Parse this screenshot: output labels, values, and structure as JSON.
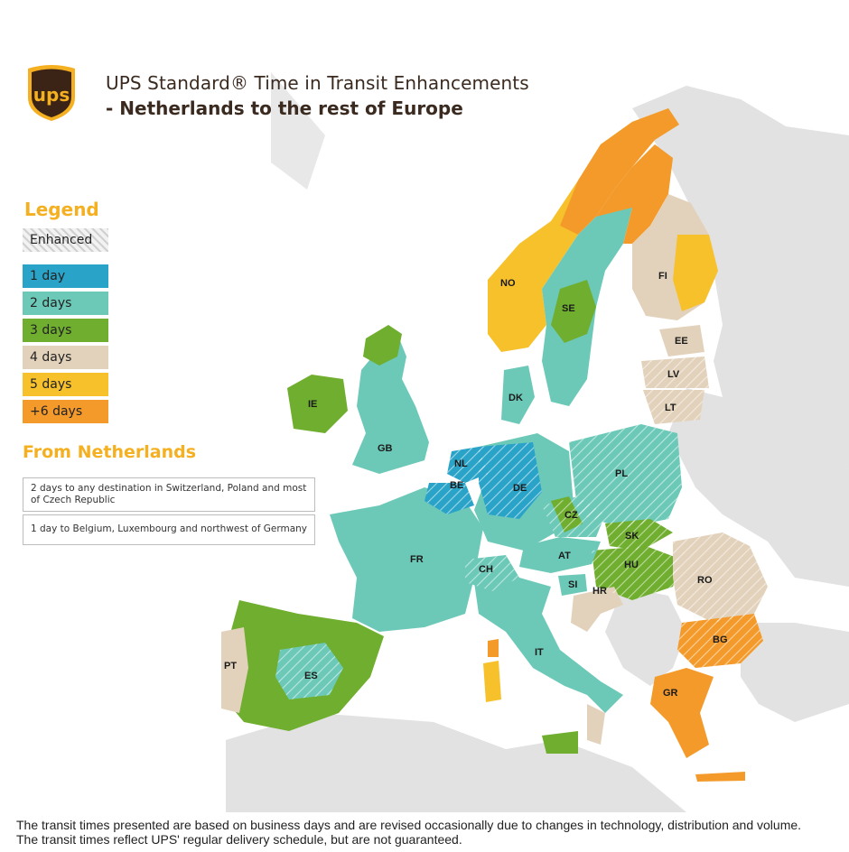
{
  "header": {
    "title_line1": "UPS Standard® Time in Transit Enhancements",
    "title_line2": "- Netherlands to the rest of Europe",
    "logo_text": "ups"
  },
  "legend": {
    "title": "Legend",
    "items": [
      {
        "label": "Enhanced",
        "color": "#e6e6e6",
        "pattern": "hatch"
      },
      {
        "label": "1 day",
        "color": "#2aa3c8"
      },
      {
        "label": "2 days",
        "color": "#6cc9b8"
      },
      {
        "label": "3 days",
        "color": "#6fae2e"
      },
      {
        "label": "4 days",
        "color": "#e3d2bb"
      },
      {
        "label": "5 days",
        "color": "#f7c12c"
      },
      {
        "label": "+6 days",
        "color": "#f39a2b"
      }
    ]
  },
  "from": {
    "title": "From Netherlands",
    "notes": [
      "2 days to any destination in Switzerland, Poland and most of Czech Republic",
      "1 day to Belgium, Luxembourg and northwest of Germany"
    ]
  },
  "countries": {
    "NO": "NO",
    "SE": "SE",
    "FI": "FI",
    "EE": "EE",
    "LV": "LV",
    "LT": "LT",
    "DK": "DK",
    "IE": "IE",
    "GB": "GB",
    "NL": "NL",
    "BE": "BE",
    "DE": "DE",
    "PL": "PL",
    "CZ": "CZ",
    "SK": "SK",
    "FR": "FR",
    "CH": "CH",
    "AT": "AT",
    "HU": "HU",
    "RO": "RO",
    "SI": "SI",
    "HR": "HR",
    "BG": "BG",
    "PT": "PT",
    "ES": "ES",
    "IT": "IT",
    "GR": "GR"
  },
  "colors": {
    "land_other": "#e2e2e2",
    "sea": "#ffffff",
    "border": "#ffffff"
  },
  "footer": "The transit times presented are based on business days and are revised occasionally due to changes in technology, distribution and volume. The transit times reflect UPS' regular delivery schedule, but are not guaranteed."
}
